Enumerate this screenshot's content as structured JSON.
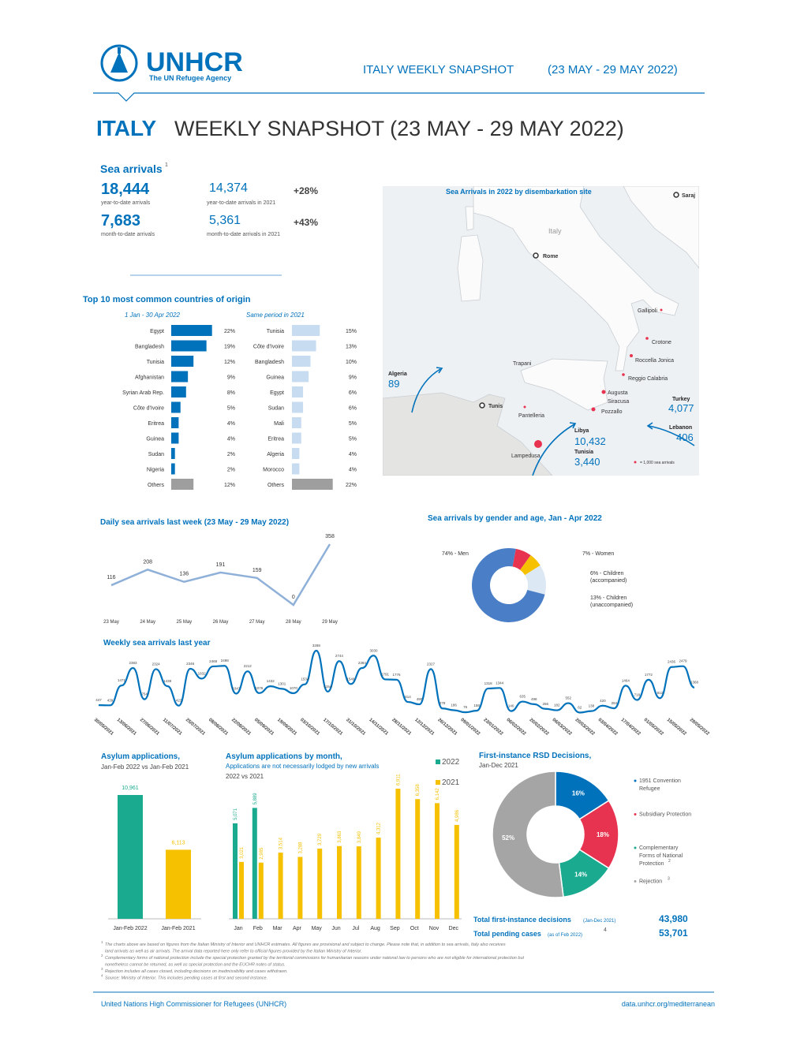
{
  "header": {
    "org": "UNHCR",
    "tagline": "The UN Refugee Agency",
    "snapshot": "ITALY WEEKLY SNAPSHOT",
    "period": "(23 MAY - 29 MAY 2022)"
  },
  "title": {
    "country": "ITALY",
    "text": "WEEKLY SNAPSHOT (23 MAY - 29 MAY 2022)"
  },
  "sea_arrivals": {
    "title": "Sea arrivals",
    "note": "1",
    "stats": [
      {
        "value": "18,444",
        "label": "year-to-date arrivals"
      },
      {
        "value": "7,683",
        "label": "month-to-date arrivals"
      }
    ],
    "comparisons": [
      {
        "value": "14,374",
        "label": "year-to-date arrivals in 2021",
        "change": "+28%"
      },
      {
        "value": "5,361",
        "label": "month-to-date arrivals in 2021",
        "change": "+43%"
      }
    ]
  },
  "origins_title": "Top 10 most common countries of origin",
  "map": {
    "title": "Sea Arrivals in 2022 by disembarkation site",
    "places": [
      "Italy",
      "Rome",
      "Gallipoli",
      "Crotone",
      "Roccella Jonica",
      "Reggio Calabria",
      "Augusta",
      "Siracusa",
      "Pozzallo",
      "Trapani",
      "Pantelleria",
      "Lampedusa",
      "Tunis",
      "Saraj"
    ],
    "origins": [
      {
        "name": "Algeria",
        "value": "89"
      },
      {
        "name": "Turkey",
        "value": "4,077"
      },
      {
        "name": "Lebanon",
        "value": "406"
      },
      {
        "name": "Libya",
        "value": "10,432"
      },
      {
        "name": "Tunisia",
        "value": "3,440"
      }
    ],
    "legend": "= 1,000 sea arrivals"
  },
  "chart_data": [
    {
      "type": "hbar",
      "title": "1 Jan - 30 Apr 2022",
      "categories": [
        "Egypt",
        "Bangladesh",
        "Tunisia",
        "Afghanistan",
        "Syrian Arab Rep.",
        "Côte d'Ivoire",
        "Eritrea",
        "Guinea",
        "Sudan",
        "Nigeria",
        "Others"
      ],
      "values": [
        22,
        19,
        12,
        9,
        8,
        5,
        4,
        4,
        2,
        2,
        12
      ],
      "value_labels": [
        "22%",
        "19%",
        "12%",
        "9%",
        "8%",
        "5%",
        "4%",
        "4%",
        "2%",
        "2%",
        "12%"
      ],
      "colors": [
        "#0072bc",
        "#0072bc",
        "#0072bc",
        "#0072bc",
        "#0072bc",
        "#0072bc",
        "#0072bc",
        "#0072bc",
        "#0072bc",
        "#0072bc",
        "#9e9e9e"
      ]
    },
    {
      "type": "hbar",
      "title": "Same period in 2021",
      "categories": [
        "Tunisia",
        "Côte d'Ivoire",
        "Bangladesh",
        "Guinea",
        "Egypt",
        "Sudan",
        "Mali",
        "Eritrea",
        "Algeria",
        "Morocco",
        "Others"
      ],
      "values": [
        15,
        13,
        10,
        9,
        6,
        6,
        5,
        5,
        4,
        4,
        22
      ],
      "value_labels": [
        "15%",
        "13%",
        "10%",
        "9%",
        "6%",
        "6%",
        "5%",
        "5%",
        "4%",
        "4%",
        "22%"
      ],
      "colors": [
        "#c7dcf0",
        "#c7dcf0",
        "#c7dcf0",
        "#c7dcf0",
        "#c7dcf0",
        "#c7dcf0",
        "#c7dcf0",
        "#c7dcf0",
        "#c7dcf0",
        "#c7dcf0",
        "#9e9e9e"
      ]
    },
    {
      "type": "line",
      "title": "Daily sea arrivals last week (23 May - 29 May 2022)",
      "categories": [
        "23 May",
        "24 May",
        "25 May",
        "26 May",
        "27 May",
        "28 May",
        "29 May"
      ],
      "values": [
        116,
        208,
        136,
        191,
        159,
        0,
        358
      ],
      "color": "#8fb0d8"
    },
    {
      "type": "donut",
      "title": "Sea arrivals by gender and age, Jan - Apr 2022",
      "values": [
        7,
        6,
        13,
        74
      ],
      "labels": [
        [
          "7% - Women"
        ],
        [
          "6% - Children",
          "(accompanied)"
        ],
        [
          "13% - Children",
          "(unaccompanied)"
        ],
        [
          "74% - Men"
        ]
      ],
      "colors": [
        "#e7334f",
        "#f5c100",
        "#dde8f5",
        "#4a7fc8"
      ]
    },
    {
      "type": "line",
      "title": "Weekly sea arrivals last year",
      "categories": [
        "30/05/2021",
        null,
        "13/06/2021",
        null,
        "27/06/2021",
        null,
        "11/07/2021",
        null,
        "25/07/2021",
        null,
        "08/08/2021",
        null,
        "22/08/2021",
        null,
        "05/09/2021",
        null,
        "19/09/2021",
        null,
        "03/10/2021",
        null,
        "17/10/2021",
        null,
        "31/10/2021",
        null,
        "14/11/2021",
        null,
        "28/11/2021",
        null,
        "12/12/2021",
        null,
        "26/12/2021",
        null,
        "09/01/2022",
        null,
        "23/01/2022",
        null,
        "06/02/2022",
        null,
        "20/02/2022",
        null,
        "06/03/2022",
        null,
        "20/03/2022",
        null,
        "03/04/2022",
        null,
        "17/04/2022",
        null,
        "01/05/2022",
        null,
        "15/05/2022",
        null,
        "29/05/2022"
      ],
      "values": [
        447,
        439,
        1471,
        2383,
        754,
        2324,
        1438,
        423,
        2346,
        1832,
        2468,
        2498,
        1047,
        2212,
        1076,
        1432,
        1301,
        1070,
        1534,
        3288,
        1154,
        2744,
        1549,
        2384,
        3030,
        1791,
        1776,
        614,
        490,
        2327,
        278,
        186,
        76,
        158,
        1318,
        1344,
        140,
        635,
        498,
        256,
        182,
        552,
        62,
        138,
        420,
        284,
        1464,
        718,
        1772,
        812,
        2436,
        2479,
        1368
      ],
      "color": "#0072bc"
    },
    {
      "type": "bar",
      "title": "Asylum applications,",
      "subtitle": "Jan-Feb 2022 vs Jan-Feb 2021",
      "categories": [
        "Jan-Feb 2022",
        "Jan-Feb 2021"
      ],
      "values": [
        10961,
        6113
      ],
      "value_labels": [
        "10,961",
        "6,113"
      ],
      "colors": [
        "#1aaa8f",
        "#f5c100"
      ]
    },
    {
      "type": "grouped_bar",
      "title": "Asylum applications by month,",
      "subtitle": "Applications are not necessarily lodged by new arrivals",
      "subtitle2": "2022 vs 2021",
      "categories": [
        "Jan",
        "Feb",
        "Mar",
        "Apr",
        "May",
        "Jun",
        "Jul",
        "Aug",
        "Sep",
        "Oct",
        "Nov",
        "Dec"
      ],
      "series": [
        {
          "name": "2022",
          "color": "#1aaa8f",
          "values": [
            5071,
            5889,
            null,
            null,
            null,
            null,
            null,
            null,
            null,
            null,
            null,
            null
          ],
          "value_labels": [
            "5,071",
            "5,889",
            null,
            null,
            null,
            null,
            null,
            null,
            null,
            null,
            null,
            null
          ]
        },
        {
          "name": "2021",
          "color": "#f5c100",
          "values": [
            3021,
            2985,
            3514,
            3288,
            3729,
            3863,
            3849,
            4312,
            6911,
            6358,
            6142,
            4986
          ],
          "value_labels": [
            "3,021",
            "2,985",
            "3,514",
            "3,288",
            "3,729",
            "3,863",
            "3,849",
            "4,312",
            "6,911",
            "6,358",
            "6,142",
            "4,986"
          ]
        }
      ]
    },
    {
      "type": "donut",
      "title": "First-instance RSD Decisions,",
      "subtitle": "Jan-Dec 2021",
      "values": [
        16,
        18,
        14,
        52
      ],
      "value_labels": [
        "16%",
        "18%",
        "14%",
        "52%"
      ],
      "labels": [
        [
          "1951 Convention",
          "Refugee"
        ],
        [
          "Subsidiary Protection"
        ],
        [
          "Complementary",
          "Forms of National",
          "Protection"
        ],
        [
          "Rejection"
        ]
      ],
      "notes": [
        null,
        null,
        "2",
        "3"
      ],
      "colors": [
        "#0072bc",
        "#e7334f",
        "#1aaa8f",
        "#a5a5a5"
      ]
    }
  ],
  "totals": {
    "decisions_label": "Total first-instance decisions",
    "decisions_period": "(Jan-Dec 2021)",
    "decisions": "43,980",
    "pending_label": "Total pending cases",
    "pending_period": "(as of Feb 2022)",
    "pending_note": "4",
    "pending": "53,701"
  },
  "footnotes": [
    {
      "note": "1",
      "text": [
        "The charts above are based on figures from the Italian Ministry of Interior and UNHCR estimates. All figures are provisional and subject to change. Please note that, in addition to sea arrivals, Italy also receives",
        "land arrivals as well as air arrivals. The arrival data reported here only refer to official figures provided by the Italian Ministry of Interior."
      ]
    },
    {
      "note": "2",
      "text": [
        "Complementary forms of national protection include the special protection granted by the territorial commissions for humanitarian reasons under national law to persons who are not eligible for international protection but",
        "nonetheless cannot be returned, as well as special protection and the EUCHR notes of status."
      ]
    },
    {
      "note": "3",
      "text": [
        "Rejection includes all cases closed, including decisions on inadmissibility and cases withdrawn."
      ]
    },
    {
      "note": "4",
      "text": [
        "Source: Ministry of Interior. This includes pending cases at first and second instance."
      ]
    }
  ],
  "footer": {
    "org": "United Nations High Commissioner for Refugees (UNHCR)",
    "url": "data.unhcr.org/mediterranean"
  }
}
